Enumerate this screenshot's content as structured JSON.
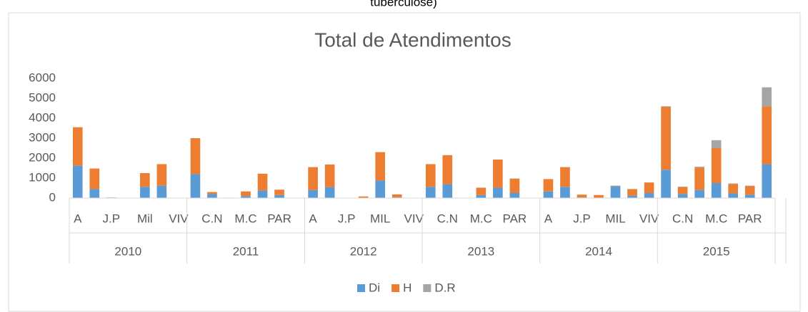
{
  "chart_data": {
    "type": "stacked_bar",
    "header": "tuberculose)",
    "title": "Total de Atendimentos",
    "categories": [
      "A",
      null,
      "J.P",
      null,
      "Mil",
      null,
      "VIV",
      null,
      "C.N",
      null,
      "M.C",
      null,
      "PAR",
      null,
      "A",
      null,
      "J.P",
      null,
      "MIL",
      null,
      "VIV",
      null,
      "C.N",
      null,
      "M.C",
      null,
      "PAR",
      null,
      "A",
      null,
      "J.P",
      null,
      "MIL",
      null,
      "VIV",
      null,
      "C.N",
      null,
      "M.C",
      null,
      "PAR",
      null
    ],
    "groups": [
      "2010",
      "2011",
      "2012",
      "2013",
      "2014",
      "2015"
    ],
    "series": [
      {
        "name": "Di",
        "color": "#5b9bd5",
        "values": [
          1620,
          450,
          20,
          0,
          560,
          620,
          0,
          1200,
          200,
          10,
          100,
          380,
          150,
          0,
          400,
          550,
          0,
          10,
          880,
          30,
          0,
          560,
          700,
          0,
          150,
          520,
          250,
          0,
          330,
          560,
          30,
          20,
          600,
          120,
          250,
          1420,
          200,
          400,
          750,
          230,
          170,
          1700
        ]
      },
      {
        "name": "H",
        "color": "#ed7d31",
        "values": [
          1930,
          1030,
          10,
          0,
          690,
          1080,
          0,
          1800,
          100,
          10,
          230,
          840,
          270,
          0,
          1150,
          1130,
          0,
          70,
          1420,
          150,
          0,
          1140,
          1450,
          0,
          370,
          1410,
          720,
          0,
          620,
          990,
          140,
          130,
          20,
          330,
          530,
          3150,
          350,
          1130,
          1750,
          480,
          420,
          2900
        ]
      },
      {
        "name": "D.R",
        "color": "#a5a5a5",
        "values": [
          0,
          0,
          0,
          0,
          0,
          0,
          0,
          0,
          0,
          0,
          0,
          0,
          0,
          0,
          0,
          0,
          0,
          0,
          0,
          0,
          0,
          0,
          0,
          0,
          0,
          0,
          10,
          0,
          0,
          0,
          0,
          0,
          0,
          0,
          0,
          30,
          20,
          40,
          400,
          20,
          30,
          950
        ]
      }
    ],
    "ylim": [
      0,
      6000
    ],
    "yticks": [
      0,
      1000,
      2000,
      3000,
      4000,
      5000,
      6000
    ],
    "grid": false,
    "legend": "bottom"
  }
}
